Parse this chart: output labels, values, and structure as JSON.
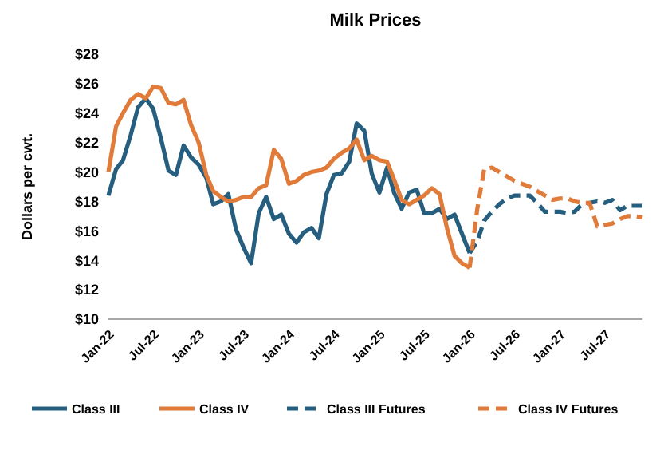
{
  "chart_data": {
    "type": "line",
    "title": "Milk Prices",
    "ylabel": "Dollars per cwt.",
    "x": [
      "2022-01",
      "2022-02",
      "2022-03",
      "2022-04",
      "2022-05",
      "2022-06",
      "2022-07",
      "2022-08",
      "2022-09",
      "2022-10",
      "2022-11",
      "2022-12",
      "2023-01",
      "2023-02",
      "2023-03",
      "2023-04",
      "2023-05",
      "2023-06",
      "2023-07",
      "2023-08",
      "2023-09",
      "2023-10",
      "2023-11",
      "2023-12",
      "2024-01",
      "2024-02",
      "2024-03",
      "2024-04",
      "2024-05",
      "2024-06",
      "2024-07",
      "2024-08",
      "2024-09",
      "2024-10",
      "2024-11",
      "2024-12",
      "2025-01",
      "2025-02",
      "2025-03",
      "2025-04",
      "2025-05",
      "2025-06",
      "2025-07",
      "2025-08",
      "2025-09",
      "2025-10",
      "2025-11",
      "2025-12",
      "2026-01"
    ],
    "series": [
      {
        "name": "Class III",
        "color": "#255e7e",
        "line_style": "solid",
        "values": [
          18.4,
          20.2,
          20.8,
          22.5,
          24.4,
          25.0,
          24.3,
          22.3,
          20.1,
          19.8,
          21.8,
          21.0,
          20.5,
          19.6,
          17.8,
          18.0,
          18.5,
          16.1,
          14.9,
          13.8,
          17.2,
          18.3,
          16.8,
          17.1,
          15.8,
          15.2,
          15.9,
          16.2,
          15.5,
          18.5,
          19.8,
          19.9,
          20.7,
          23.3,
          22.8,
          19.9,
          18.6,
          20.3,
          18.6,
          17.5,
          18.6,
          18.8,
          17.2,
          17.2,
          17.5,
          16.8,
          17.1,
          15.8,
          14.5
        ]
      },
      {
        "name": "Class IV",
        "color": "#e07b39",
        "line_style": "solid",
        "values": [
          20.0,
          23.1,
          24.0,
          24.9,
          25.3,
          25.0,
          25.8,
          25.7,
          24.7,
          24.6,
          24.9,
          23.2,
          22.0,
          19.8,
          18.7,
          18.3,
          18.0,
          18.1,
          18.3,
          18.3,
          18.9,
          19.1,
          21.5,
          20.9,
          19.2,
          19.4,
          19.8,
          20.0,
          20.1,
          20.3,
          20.9,
          21.3,
          21.6,
          22.2,
          20.8,
          21.1,
          20.8,
          20.7,
          19.5,
          18.1,
          17.8,
          18.1,
          18.4,
          18.9,
          18.5,
          16.2,
          14.3,
          13.8,
          13.5
        ]
      },
      {
        "name": "Class III Futures",
        "color": "#255e7e",
        "line_style": "dashed",
        "x": [
          "2026-01",
          "2026-02",
          "2026-03",
          "2026-04",
          "2026-05",
          "2026-06",
          "2026-07",
          "2026-08",
          "2026-09",
          "2026-10",
          "2026-11",
          "2026-12",
          "2027-01",
          "2027-02",
          "2027-03",
          "2027-04",
          "2027-05",
          "2027-06",
          "2027-07",
          "2027-08",
          "2027-09",
          "2027-10",
          "2027-11",
          "2027-12"
        ],
        "values": [
          14.5,
          15.3,
          16.7,
          17.3,
          17.8,
          18.2,
          18.4,
          18.4,
          18.4,
          17.9,
          17.3,
          17.3,
          17.3,
          17.2,
          17.3,
          17.8,
          17.9,
          18.0,
          17.9,
          18.1,
          17.4,
          17.7,
          17.7,
          17.7
        ]
      },
      {
        "name": "Class IV Futures",
        "color": "#e07b39",
        "line_style": "dashed",
        "x": [
          "2026-01",
          "2026-02",
          "2026-03",
          "2026-04",
          "2026-05",
          "2026-06",
          "2026-07",
          "2026-08",
          "2026-09",
          "2026-10",
          "2026-11",
          "2026-12",
          "2027-01",
          "2027-02",
          "2027-03",
          "2027-04",
          "2027-05",
          "2027-06",
          "2027-07",
          "2027-08",
          "2027-09",
          "2027-10",
          "2027-11",
          "2027-12"
        ],
        "values": [
          13.5,
          17.5,
          20.2,
          20.3,
          20.0,
          19.7,
          19.4,
          19.2,
          19.0,
          18.7,
          18.4,
          18.1,
          18.2,
          18.2,
          18.0,
          17.9,
          17.9,
          16.3,
          16.4,
          16.5,
          16.8,
          17.0,
          17.0,
          16.9
        ]
      }
    ],
    "xlim": [
      "2022-01",
      "2027-12"
    ],
    "xticks": [
      {
        "value": "2022-01",
        "label": "Jan-22"
      },
      {
        "value": "2022-07",
        "label": "Jul-22"
      },
      {
        "value": "2023-01",
        "label": "Jan-23"
      },
      {
        "value": "2023-07",
        "label": "Jul-23"
      },
      {
        "value": "2024-01",
        "label": "Jan-24"
      },
      {
        "value": "2024-07",
        "label": "Jul-24"
      },
      {
        "value": "2025-01",
        "label": "Jan-25"
      },
      {
        "value": "2025-07",
        "label": "Jul-25"
      },
      {
        "value": "2026-01",
        "label": "Jan-26"
      },
      {
        "value": "2026-07",
        "label": "Jul-26"
      },
      {
        "value": "2027-01",
        "label": "Jan-27"
      },
      {
        "value": "2027-07",
        "label": "Jul-27"
      }
    ],
    "ylim": [
      10,
      28
    ],
    "yticks": [
      {
        "value": 10,
        "label": "$10"
      },
      {
        "value": 12,
        "label": "$12"
      },
      {
        "value": 14,
        "label": "$14"
      },
      {
        "value": 16,
        "label": "$16"
      },
      {
        "value": 18,
        "label": "$18"
      },
      {
        "value": 20,
        "label": "$20"
      },
      {
        "value": 22,
        "label": "$22"
      },
      {
        "value": 24,
        "label": "$24"
      },
      {
        "value": 26,
        "label": "$26"
      },
      {
        "value": 28,
        "label": "$28"
      }
    ],
    "grid": false,
    "legend": "bottom"
  }
}
